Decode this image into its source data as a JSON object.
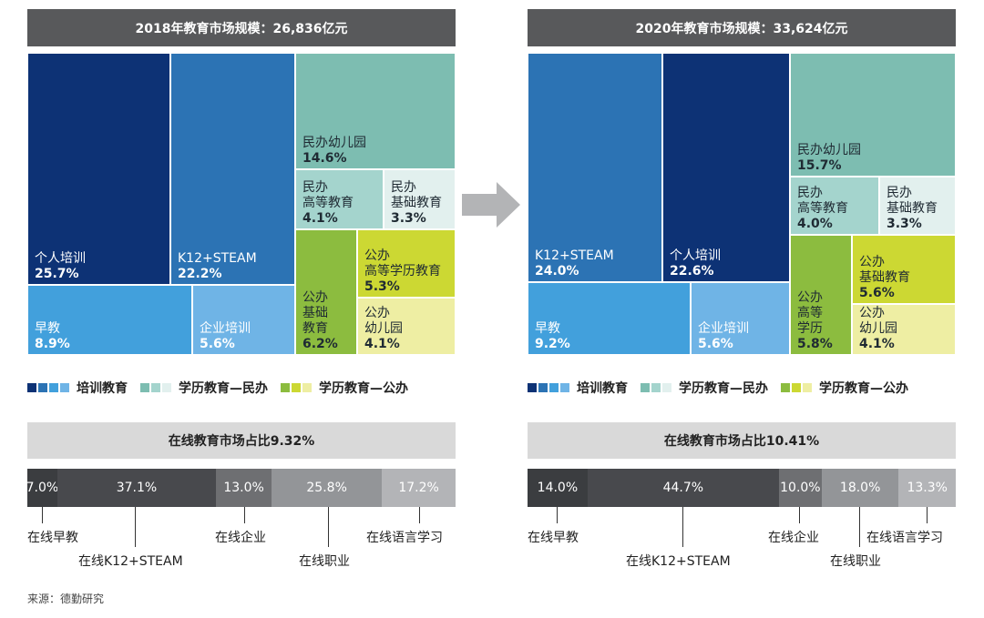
{
  "source": "来源：德勤研究",
  "colors": {
    "title_bar": "#58595b",
    "sub_bar": "#d9d9d9",
    "training": [
      "#0d3275",
      "#2c73b4",
      "#42a0dc",
      "#6fb4e6"
    ],
    "private": [
      "#7dbdb1",
      "#a4d4cd",
      "#e2f0ee"
    ],
    "public": [
      "#8cbc3f",
      "#ccd833",
      "#eeeea3"
    ]
  },
  "legend": [
    {
      "label": "培训教育",
      "swatches": [
        "#0d3275",
        "#2c73b4",
        "#42a0dc",
        "#6fb4e6"
      ]
    },
    {
      "label": "学历教育—民办",
      "swatches": [
        "#7dbdb1",
        "#a4d4cd",
        "#e2f0ee"
      ]
    },
    {
      "label": "学历教育—公办",
      "swatches": [
        "#8cbc3f",
        "#ccd833",
        "#eeeea3"
      ]
    }
  ],
  "panels": [
    {
      "title": "2018年教育市场规模：26,836亿元",
      "online_title": "在线教育市场占比9.32%",
      "chart_data": [
        {
          "type": "treemap",
          "title": "2018年教育市场规模：26,836亿元",
          "total": 26836,
          "unit": "亿元",
          "cells": [
            {
              "label": "个人培训",
              "value": 25.7,
              "pct": "25.7%",
              "category": "培训教育",
              "color": "#0d3275"
            },
            {
              "label": "K12+STEAM",
              "value": 22.2,
              "pct": "22.2%",
              "category": "培训教育",
              "color": "#2c73b4"
            },
            {
              "label": "早教",
              "value": 8.9,
              "pct": "8.9%",
              "category": "培训教育",
              "color": "#42a0dc"
            },
            {
              "label": "企业培训",
              "value": 5.6,
              "pct": "5.6%",
              "category": "培训教育",
              "color": "#6fb4e6"
            },
            {
              "label": "民办幼儿园",
              "value": 14.6,
              "pct": "14.6%",
              "category": "学历教育—民办",
              "color": "#7dbdb1"
            },
            {
              "label": "民办\n高等教育",
              "value": 4.1,
              "pct": "4.1%",
              "category": "学历教育—民办",
              "color": "#a4d4cd"
            },
            {
              "label": "民办\n基础教育",
              "value": 3.3,
              "pct": "3.3%",
              "category": "学历教育—民办",
              "color": "#e2f0ee"
            },
            {
              "label": "公办\n基础\n教育",
              "value": 6.2,
              "pct": "6.2%",
              "category": "学历教育—公办",
              "color": "#8cbc3f"
            },
            {
              "label": "公办\n高等学历教育",
              "value": 5.3,
              "pct": "5.3%",
              "category": "学历教育—公办",
              "color": "#ccd833"
            },
            {
              "label": "公办\n幼儿园",
              "value": 4.1,
              "pct": "4.1%",
              "category": "学历教育—公办",
              "color": "#eeeea3"
            }
          ]
        },
        {
          "type": "bar",
          "orientation": "horizontal-stacked",
          "title": "在线教育市场占比9.32%",
          "categories": [
            "在线早教",
            "在线K12+STEAM",
            "在线企业",
            "在线职业",
            "在线语言学习"
          ],
          "values": [
            7.0,
            37.1,
            13.0,
            25.8,
            17.2
          ],
          "labels": [
            "7.0%",
            "37.1%",
            "13.0%",
            "25.8%",
            "17.2%"
          ],
          "colors": [
            "#3b3d40",
            "#48494d",
            "#6e6f72",
            "#939598",
            "#b3b4b7"
          ]
        }
      ]
    },
    {
      "title": "2020年教育市场规模：33,624亿元",
      "online_title": "在线教育市场占比10.41%",
      "chart_data": [
        {
          "type": "treemap",
          "title": "2020年教育市场规模：33,624亿元",
          "total": 33624,
          "unit": "亿元",
          "cells": [
            {
              "label": "K12+STEAM",
              "value": 24.0,
              "pct": "24.0%",
              "category": "培训教育",
              "color": "#2c73b4"
            },
            {
              "label": "个人培训",
              "value": 22.6,
              "pct": "22.6%",
              "category": "培训教育",
              "color": "#0d3275"
            },
            {
              "label": "早教",
              "value": 9.2,
              "pct": "9.2%",
              "category": "培训教育",
              "color": "#42a0dc"
            },
            {
              "label": "企业培训",
              "value": 5.6,
              "pct": "5.6%",
              "category": "培训教育",
              "color": "#6fb4e6"
            },
            {
              "label": "民办幼儿园",
              "value": 15.7,
              "pct": "15.7%",
              "category": "学历教育—民办",
              "color": "#7dbdb1"
            },
            {
              "label": "民办\n高等教育",
              "value": 4.0,
              "pct": "4.0%",
              "category": "学历教育—民办",
              "color": "#a4d4cd"
            },
            {
              "label": "民办\n基础教育",
              "value": 3.3,
              "pct": "3.3%",
              "category": "学历教育—民办",
              "color": "#e2f0ee"
            },
            {
              "label": "公办\n高等\n学历",
              "value": 5.8,
              "pct": "5.8%",
              "category": "学历教育—公办",
              "color": "#8cbc3f"
            },
            {
              "label": "公办\n基础教育",
              "value": 5.6,
              "pct": "5.6%",
              "category": "学历教育—公办",
              "color": "#ccd833"
            },
            {
              "label": "公办\n幼儿园",
              "value": 4.1,
              "pct": "4.1%",
              "category": "学历教育—公办",
              "color": "#eeeea3"
            }
          ]
        },
        {
          "type": "bar",
          "orientation": "horizontal-stacked",
          "title": "在线教育市场占比10.41%",
          "categories": [
            "在线早教",
            "在线K12+STEAM",
            "在线企业",
            "在线职业",
            "在线语言学习"
          ],
          "values": [
            14.0,
            44.7,
            10.0,
            18.0,
            13.3
          ],
          "labels": [
            "14.0%",
            "44.7%",
            "10.0%",
            "18.0%",
            "13.3%"
          ],
          "colors": [
            "#3b3d40",
            "#48494d",
            "#6e6f72",
            "#939598",
            "#b3b4b7"
          ]
        }
      ]
    }
  ]
}
